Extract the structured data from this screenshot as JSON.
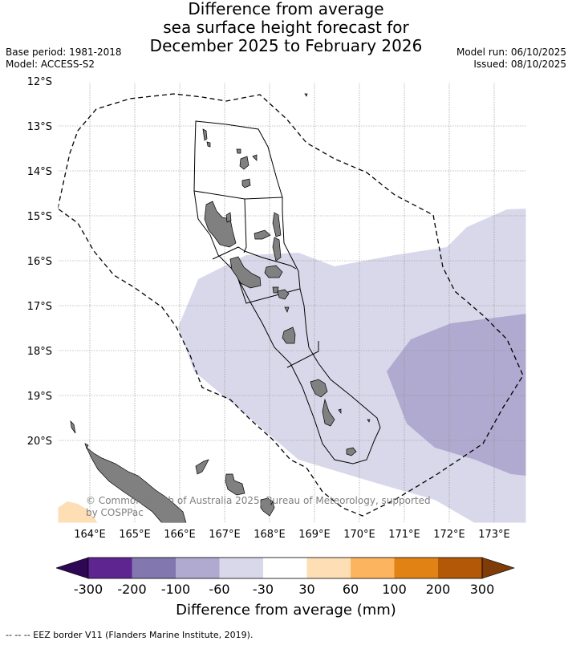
{
  "title": {
    "line1": "Difference from average",
    "line2": "sea surface height forecast for",
    "line3": "December 2025 to February 2026"
  },
  "meta": {
    "base_period": "Base period: 1981-2018",
    "model": "Model: ACCESS-S2",
    "model_run": "Model run: 06/10/2025",
    "issued": "Issued: 08/10/2025"
  },
  "map": {
    "lat_labels": [
      "12°S",
      "13°S",
      "14°S",
      "15°S",
      "16°S",
      "17°S",
      "18°S",
      "19°S",
      "20°S"
    ],
    "lon_labels": [
      "164°E",
      "165°E",
      "166°E",
      "167°E",
      "168°E",
      "169°E",
      "170°E",
      "171°E",
      "172°E",
      "173°E"
    ],
    "credit_line1": "© Commonwealth of Australia 2025, Bureau of Meteorology, supported",
    "credit_line2": "by COSPPac",
    "colors": {
      "land": "#808080",
      "lev1": "#d8d8ea",
      "lev2": "#b0aad0",
      "eez": "#000000"
    }
  },
  "colorbar": {
    "labels": [
      "-300",
      "-200",
      "-100",
      "-60",
      "-30",
      "30",
      "60",
      "100",
      "200",
      "300"
    ],
    "colors": [
      "#2e0854",
      "#5e2590",
      "#8277af",
      "#b0aad0",
      "#d8d8ea",
      "#ffffff",
      "#fddeb5",
      "#fdb45f",
      "#e08214",
      "#b35806",
      "#7f3b08"
    ],
    "title": "Difference from average (mm)"
  },
  "legend": {
    "text": "--  --  -- EEZ border V11 (Flanders Marine Institute, 2019)."
  }
}
